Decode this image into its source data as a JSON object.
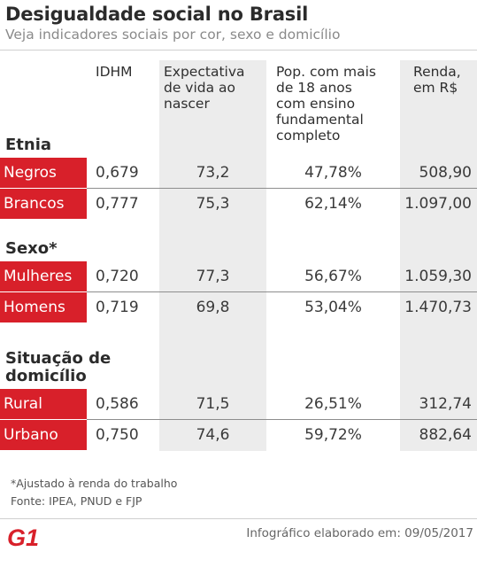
{
  "title": "Desigualdade social no Brasil",
  "subtitle": "Veja indicadores sociais por cor, sexo e domicílio",
  "columns": {
    "idhm": "IDHM",
    "expectativa": [
      "Expectativa",
      "de vida ao",
      "nascer"
    ],
    "populacao": [
      "Pop. com mais",
      "de 18 anos",
      "com ensino",
      "fundamental",
      "completo"
    ],
    "renda": [
      "Renda,",
      "em R$"
    ]
  },
  "sections": [
    {
      "title": [
        "Etnia"
      ],
      "rows": [
        {
          "label": "Negros",
          "idhm": "0,679",
          "expectativa": "73,2",
          "populacao": "47,78%",
          "renda": "508,90"
        },
        {
          "label": "Brancos",
          "idhm": "0,777",
          "expectativa": "75,3",
          "populacao": "62,14%",
          "renda": "1.097,00"
        }
      ]
    },
    {
      "title": [
        "Sexo*"
      ],
      "rows": [
        {
          "label": "Mulheres",
          "idhm": "0,720",
          "expectativa": "77,3",
          "populacao": "56,67%",
          "renda": "1.059,30"
        },
        {
          "label": "Homens",
          "idhm": "0,719",
          "expectativa": "69,8",
          "populacao": "53,04%",
          "renda": "1.470,73"
        }
      ]
    },
    {
      "title": [
        "Situação de",
        "domicílio"
      ],
      "rows": [
        {
          "label": "Rural",
          "idhm": "0,586",
          "expectativa": "71,5",
          "populacao": "26,51%",
          "renda": "312,74"
        },
        {
          "label": "Urbano",
          "idhm": "0,750",
          "expectativa": "74,6",
          "populacao": "59,72%",
          "renda": "882,64"
        }
      ]
    }
  ],
  "footnotes": [
    "*Ajustado à renda do trabalho",
    "Fonte: IPEA, PNUD e FJP"
  ],
  "logo_text": "G1",
  "credit": "Infográfico elaborado em: 09/05/2017",
  "colors": {
    "accent": "#d8202a",
    "shade": "#ececec"
  },
  "chart_data": {
    "type": "table",
    "title": "Desigualdade social no Brasil",
    "subtitle": "Veja indicadores sociais por cor, sexo e domicílio",
    "columns": [
      "IDHM",
      "Expectativa de vida ao nascer",
      "Pop. com mais de 18 anos com ensino fundamental completo",
      "Renda, em R$"
    ],
    "groups": [
      "Etnia",
      "Sexo*",
      "Situação de domicílio"
    ],
    "rows": [
      {
        "group": "Etnia",
        "label": "Negros",
        "values": [
          0.679,
          73.2,
          47.78,
          508.9
        ]
      },
      {
        "group": "Etnia",
        "label": "Brancos",
        "values": [
          0.777,
          75.3,
          62.14,
          1097.0
        ]
      },
      {
        "group": "Sexo*",
        "label": "Mulheres",
        "values": [
          0.72,
          77.3,
          56.67,
          1059.3
        ]
      },
      {
        "group": "Sexo*",
        "label": "Homens",
        "values": [
          0.719,
          69.8,
          53.04,
          1470.73
        ]
      },
      {
        "group": "Situação de domicílio",
        "label": "Rural",
        "values": [
          0.586,
          71.5,
          26.51,
          312.74
        ]
      },
      {
        "group": "Situação de domicílio",
        "label": "Urbano",
        "values": [
          0.75,
          74.6,
          59.72,
          882.64
        ]
      }
    ]
  }
}
